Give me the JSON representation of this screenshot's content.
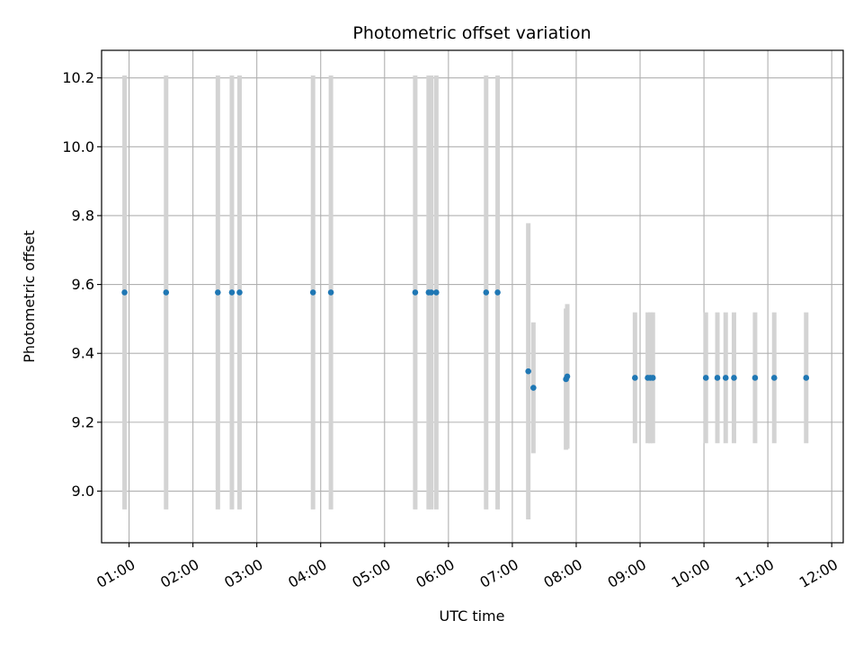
{
  "chart_data": {
    "type": "scatter",
    "title": "Photometric offset variation",
    "xlabel": "UTC time",
    "ylabel": "Photometric offset",
    "x_unit": "hours UTC",
    "xlim": [
      0.57,
      12.18
    ],
    "ylim": [
      8.85,
      10.28
    ],
    "grid": true,
    "x_ticks": [
      {
        "value": 1,
        "label": "01:00"
      },
      {
        "value": 2,
        "label": "02:00"
      },
      {
        "value": 3,
        "label": "03:00"
      },
      {
        "value": 4,
        "label": "04:00"
      },
      {
        "value": 5,
        "label": "05:00"
      },
      {
        "value": 6,
        "label": "06:00"
      },
      {
        "value": 7,
        "label": "07:00"
      },
      {
        "value": 8,
        "label": "08:00"
      },
      {
        "value": 9,
        "label": "09:00"
      },
      {
        "value": 10,
        "label": "10:00"
      },
      {
        "value": 11,
        "label": "11:00"
      },
      {
        "value": 12,
        "label": "12:00"
      }
    ],
    "y_ticks": [
      {
        "value": 9.0,
        "label": "9.0"
      },
      {
        "value": 9.2,
        "label": "9.2"
      },
      {
        "value": 9.4,
        "label": "9.4"
      },
      {
        "value": 9.6,
        "label": "9.6"
      },
      {
        "value": 9.8,
        "label": "9.8"
      },
      {
        "value": 10.0,
        "label": "10.0"
      },
      {
        "value": 10.2,
        "label": "10.2"
      }
    ],
    "colors": {
      "point": "#1f77b4",
      "errorbar": "#d3d3d3",
      "grid": "#b0b0b0"
    },
    "points": [
      {
        "x": 0.93,
        "y": 9.577,
        "err": 0.63
      },
      {
        "x": 1.58,
        "y": 9.577,
        "err": 0.63
      },
      {
        "x": 2.39,
        "y": 9.577,
        "err": 0.63
      },
      {
        "x": 2.61,
        "y": 9.577,
        "err": 0.63
      },
      {
        "x": 2.73,
        "y": 9.577,
        "err": 0.63
      },
      {
        "x": 3.88,
        "y": 9.577,
        "err": 0.63
      },
      {
        "x": 4.16,
        "y": 9.577,
        "err": 0.63
      },
      {
        "x": 5.48,
        "y": 9.577,
        "err": 0.63
      },
      {
        "x": 5.69,
        "y": 9.577,
        "err": 0.63
      },
      {
        "x": 5.73,
        "y": 9.577,
        "err": 0.63
      },
      {
        "x": 5.81,
        "y": 9.577,
        "err": 0.63
      },
      {
        "x": 6.59,
        "y": 9.577,
        "err": 0.63
      },
      {
        "x": 6.77,
        "y": 9.577,
        "err": 0.63
      },
      {
        "x": 7.25,
        "y": 9.348,
        "err": 0.43
      },
      {
        "x": 7.33,
        "y": 9.3,
        "err": 0.19
      },
      {
        "x": 7.84,
        "y": 9.325,
        "err": 0.205
      },
      {
        "x": 7.86,
        "y": 9.333,
        "err": 0.21
      },
      {
        "x": 8.92,
        "y": 9.329,
        "err": 0.19
      },
      {
        "x": 9.12,
        "y": 9.329,
        "err": 0.19
      },
      {
        "x": 9.16,
        "y": 9.329,
        "err": 0.19
      },
      {
        "x": 9.2,
        "y": 9.329,
        "err": 0.19
      },
      {
        "x": 10.03,
        "y": 9.329,
        "err": 0.19
      },
      {
        "x": 10.21,
        "y": 9.329,
        "err": 0.19
      },
      {
        "x": 10.34,
        "y": 9.329,
        "err": 0.19
      },
      {
        "x": 10.47,
        "y": 9.329,
        "err": 0.19
      },
      {
        "x": 10.8,
        "y": 9.329,
        "err": 0.19
      },
      {
        "x": 11.1,
        "y": 9.329,
        "err": 0.19
      },
      {
        "x": 11.6,
        "y": 9.329,
        "err": 0.19
      }
    ]
  }
}
